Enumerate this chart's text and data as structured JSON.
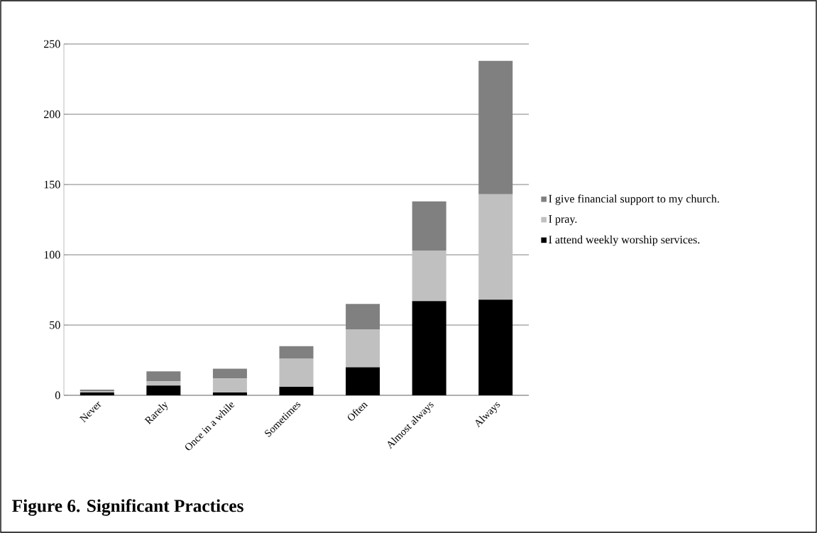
{
  "chart_data": {
    "type": "bar",
    "stacked": true,
    "title": "Figure 6. Significant Practices",
    "categories": [
      "Never",
      "Rarely",
      "Once in a while",
      "Sometimes",
      "Often",
      "Almost always",
      "Always"
    ],
    "series": [
      {
        "name": "I attend weekly worship services.",
        "color": "#000000",
        "values": [
          2,
          7,
          2,
          6,
          20,
          67,
          68
        ]
      },
      {
        "name": "I pray.",
        "color": "#c0c0c0",
        "values": [
          1,
          3,
          10,
          20,
          27,
          36,
          75
        ]
      },
      {
        "name": "I give financial support to my church.",
        "color": "#808080",
        "values": [
          1,
          7,
          7,
          9,
          18,
          35,
          95
        ]
      }
    ],
    "ylim": [
      0,
      250
    ],
    "yticks": [
      0,
      50,
      100,
      150,
      200,
      250
    ],
    "grid": "y",
    "legend": "right"
  }
}
